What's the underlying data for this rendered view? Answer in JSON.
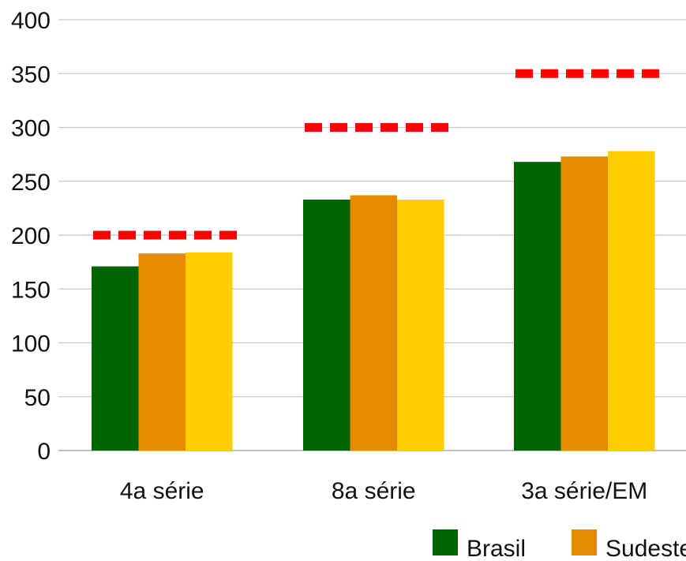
{
  "chart_data": {
    "type": "bar",
    "categories": [
      "4a série",
      "8a série",
      "3a série/EM"
    ],
    "series": [
      {
        "name": "Brasil",
        "color": "#006400",
        "values": [
          171,
          233,
          268
        ]
      },
      {
        "name": "Sudeste",
        "color": "#E68A00",
        "values": [
          183,
          237,
          273
        ]
      },
      {
        "name": "",
        "color": "#FFCC00",
        "values": [
          184,
          233,
          278
        ]
      }
    ],
    "reference_lines": [
      {
        "category": "4a série",
        "value": 200,
        "color": "#FF0000",
        "style": "dashed"
      },
      {
        "category": "8a série",
        "value": 300,
        "color": "#FF0000",
        "style": "dashed"
      },
      {
        "category": "3a série/EM",
        "value": 350,
        "color": "#FF0000",
        "style": "dashed"
      }
    ],
    "ylim": [
      0,
      400
    ],
    "yticks": [
      "0",
      "50",
      "100",
      "150",
      "200",
      "250",
      "300",
      "350",
      "400"
    ],
    "grid": true,
    "legend_position": "bottom-right",
    "legend_labels": [
      "Brasil",
      "Sudeste"
    ]
  }
}
